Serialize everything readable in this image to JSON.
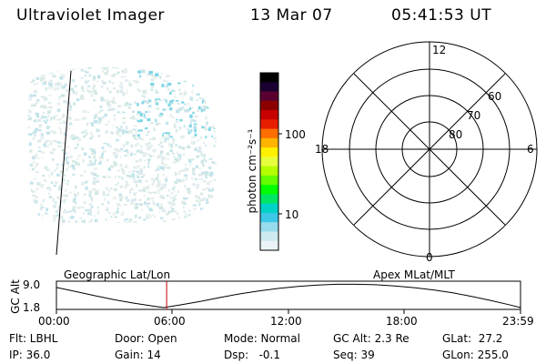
{
  "header": {
    "title": "Ultraviolet Imager",
    "date": "13 Mar 07",
    "time": "05:41:53 UT"
  },
  "colorbar": {
    "label": "photon cm⁻²s⁻¹",
    "ticks": [
      "100",
      "10"
    ],
    "colors": [
      "#000000",
      "#1a0030",
      "#5a0030",
      "#8c0000",
      "#c80000",
      "#e81e00",
      "#ff6e00",
      "#ffb400",
      "#fff000",
      "#e6ff3c",
      "#b4ff00",
      "#64ff00",
      "#00ff00",
      "#00e664",
      "#00d2c8",
      "#3cc8e6",
      "#96dcec",
      "#cdeaf0",
      "#eaf3f6"
    ]
  },
  "polar": {
    "mlt_labels": [
      "12",
      "18",
      "6",
      "0"
    ],
    "lat_labels": [
      "60",
      "70",
      "80"
    ]
  },
  "timeline": {
    "left_label": "Geographic Lat/Lon",
    "right_label": "Apex MLat/MLT",
    "y_axis_label": "GC Alt",
    "y_ticks": [
      "9.0",
      "1.8"
    ],
    "x_ticks": [
      "00:00",
      "06:00",
      "12:00",
      "18:00",
      "23:59"
    ],
    "current_time_hours": 5.7,
    "marker_color": "#c00000"
  },
  "info": {
    "filter": "Flt: LBHL",
    "ip": "IP: 36.0",
    "door": "Door: Open",
    "gain": "Gain: 14",
    "mode": "Mode: Normal",
    "dsp": "Dsp:   -0.1",
    "gc_alt": "GC Alt: 2.3 Re",
    "seq": "Seq: 39",
    "glat": "GLat:  27.2",
    "glon": "GLon: 255.0"
  }
}
